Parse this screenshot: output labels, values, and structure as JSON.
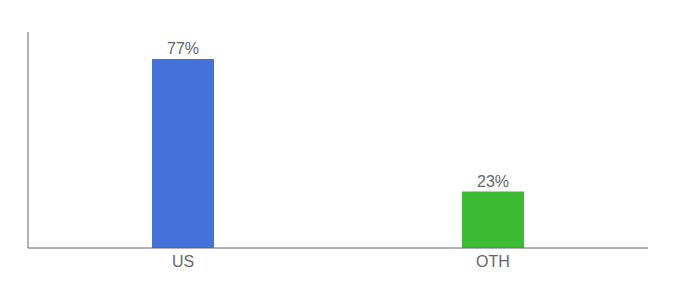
{
  "chart_data": {
    "type": "bar",
    "categories": [
      "US",
      "OTH"
    ],
    "values": [
      77,
      23
    ],
    "value_labels": [
      "77%",
      "23%"
    ],
    "colors": [
      "#4472db",
      "#3dbb35"
    ],
    "ylim": [
      0,
      88
    ],
    "tick_labels": "x",
    "data_labels": true
  }
}
